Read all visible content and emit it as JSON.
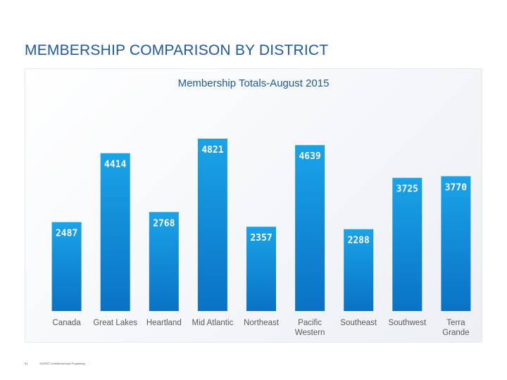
{
  "slide": {
    "title": "MEMBERSHIP COMPARISON BY DISTRICT",
    "page_number": "51",
    "footer_text": "SGPRC Confidential and Proprietary"
  },
  "colors": {
    "title": "#1e5a9c",
    "bar_top": "#1aa3e8",
    "bar_bottom": "#0a72c4",
    "data_label": "#ffffff",
    "axis_text": "#5a5a5a"
  },
  "chart_data": {
    "type": "bar",
    "title": "Membership Totals-August 2015",
    "categories": [
      "Canada",
      "Great Lakes",
      "Heartland",
      "Mid Atlantic",
      "Northeast",
      "Pacific Western",
      "Southeast",
      "Southwest",
      "Terra Grande"
    ],
    "category_lines": [
      [
        "Canada"
      ],
      [
        "Great Lakes"
      ],
      [
        "Heartland"
      ],
      [
        "Mid Atlantic"
      ],
      [
        "Northeast"
      ],
      [
        "Pacific",
        "Western"
      ],
      [
        "Southeast"
      ],
      [
        "Southwest"
      ],
      [
        "Terra",
        "Grande"
      ]
    ],
    "values": [
      2487,
      4414,
      2768,
      4821,
      2357,
      4639,
      2288,
      3725,
      3770
    ],
    "xlabel": "",
    "ylabel": "",
    "ylim": [
      0,
      5000
    ],
    "grid": false,
    "legend": "none"
  }
}
